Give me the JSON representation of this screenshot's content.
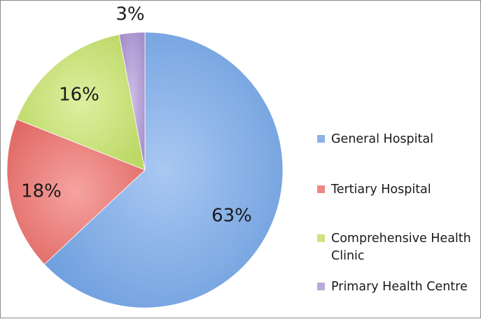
{
  "chart_data": {
    "type": "pie",
    "title": "",
    "categories": [
      "General Hospital",
      "Tertiary Hospital",
      "Comprehensive Health Clinic",
      "Primary Health Centre"
    ],
    "values": [
      63,
      18,
      16,
      3
    ],
    "data_labels": [
      "63%",
      "18%",
      "16%",
      "3%"
    ],
    "colors": [
      "#8db4ea",
      "#ee8884",
      "#cde47f",
      "#bba7d8"
    ],
    "start_angle_deg": 0,
    "direction": "clockwise",
    "legend_position": "right"
  }
}
